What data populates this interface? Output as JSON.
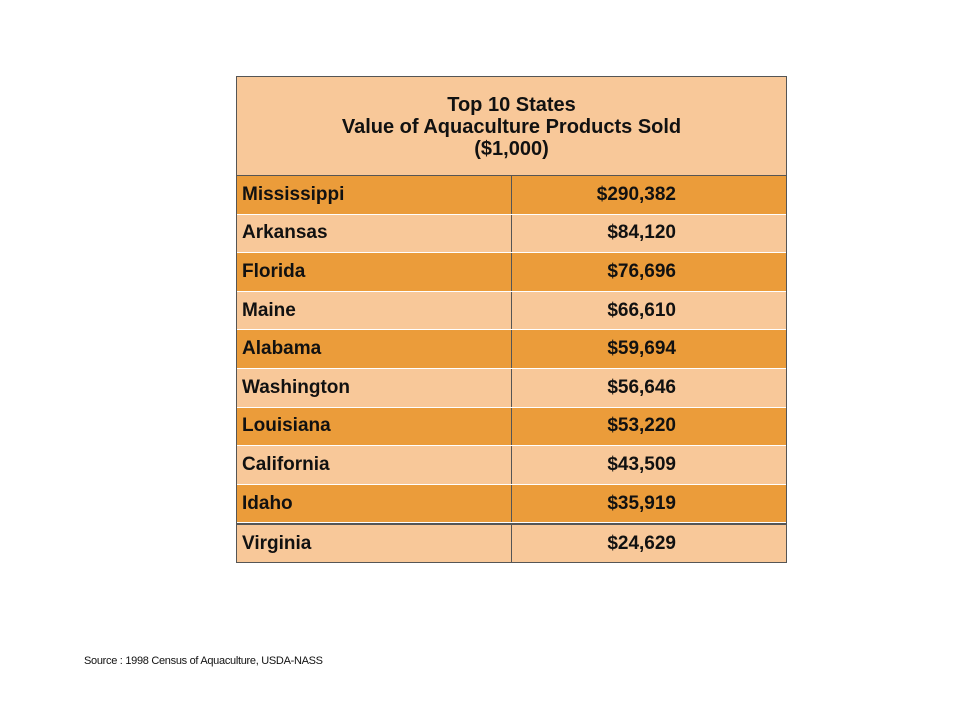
{
  "table": {
    "title_lines": [
      "Top 10 States",
      "Value of Aquaculture Products Sold",
      "($1,000)"
    ],
    "rows": [
      {
        "state": "Mississippi",
        "value": "$290,382"
      },
      {
        "state": "Arkansas",
        "value": "$84,120"
      },
      {
        "state": "Florida",
        "value": "$76,696"
      },
      {
        "state": "Maine",
        "value": "$66,610"
      },
      {
        "state": "Alabama",
        "value": "$59,694"
      },
      {
        "state": "Washington",
        "value": "$56,646"
      },
      {
        "state": "Louisiana",
        "value": "$53,220"
      },
      {
        "state": "California",
        "value": "$43,509"
      },
      {
        "state": "Idaho",
        "value": "$35,919"
      },
      {
        "state": "Virginia",
        "value": "$24,629"
      }
    ]
  },
  "source_note": "Source :  1998 Census of Aquaculture, USDA-NASS",
  "colors": {
    "row_dark": "#eb9c3a",
    "row_light": "#f8c899",
    "border": "#555555"
  }
}
